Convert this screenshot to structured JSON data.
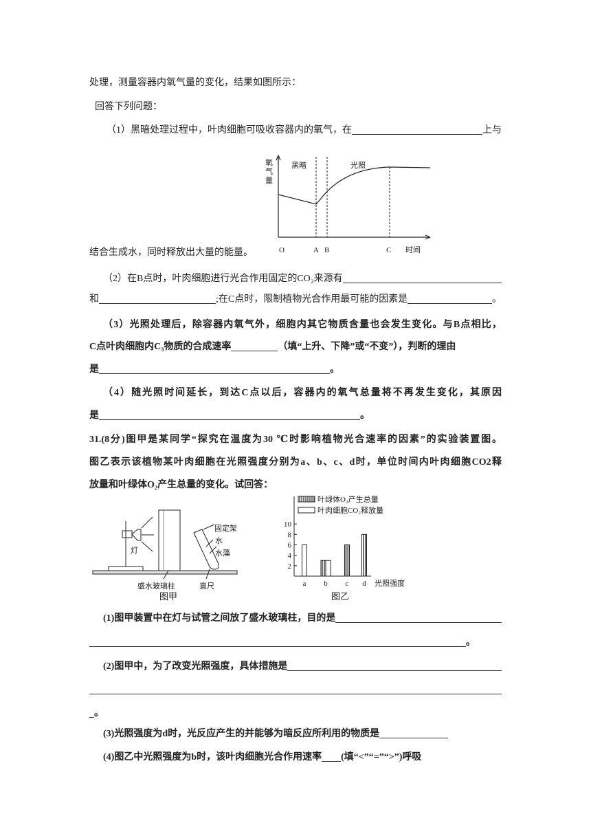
{
  "lines": {
    "l1": "处理，测量容器内氧气量的变化，结果如图所示：",
    "l2": "回答下列问题：",
    "q1a": "（1）黑暗处理过程中，叶肉细胞可吸收容器内的氧气，在",
    "q1b": "上与",
    "q1c": "结合生成水，同时释放出大量的能量。",
    "q2a": "（2）在B点时，叶肉细胞进行光合作用固定的CO₂来源有",
    "q2b": "和",
    "q2c": ";在C点时，限制植物光合作用最可能的因素是",
    "q2d": "。",
    "q3a": "（3）光照处理后，除容器内氧气外，细胞内其它物质含量也会发生变化。与B点相比，",
    "q3b": "C点叶肉细胞内C₃物质的合成速率",
    "q3c": "（填“上升、下降”或“不变”），判断的理由",
    "q3d": "是",
    "q3e": "。",
    "q4a": "（4）随光照时间延长，到达C点以后，容器内的氧气总量将不再发生变化，其原因",
    "q4b": "是",
    "q4c": "。",
    "p31a": "31.(8分)图甲是某同学“探究在温度为30 ℃时影响植物光合速率的因素”的实验装置图。",
    "p31b": "图乙表示该植物某叶肉细胞在光照强度分别为a、b、c、d时，单位时间内叶肉细胞CO2释",
    "p31c": "放量和叶绿体O₂产生总量的变化。试回答：",
    "s1a": "(1)图甲装置中在灯与试管之间放了盛水玻璃柱，目的是",
    "s1b": "。",
    "s2a": "(2)图甲中，为了改变光照强度，具体措施是",
    "s2b": "。",
    "s3a": "(3)光照强度为d时，光反应产生的并能够为暗反应所利用的物质是",
    "s4a": "(4)图乙中光照强度为b时，该叶肉细胞光合作用速率",
    "s4b": "(填“<”“=”“>”)呼吸"
  },
  "figure_oxygen": {
    "y_label": [
      "氧",
      "气",
      "量"
    ],
    "dark": "黑暗",
    "light": "光照",
    "origin": "O",
    "a": "A",
    "b": "B",
    "c": "C",
    "x_label": "时间"
  },
  "figure_a": {
    "lamp": "灯",
    "stand": "固定架",
    "water": "水",
    "algae": "水藻",
    "column": "盛水玻璃柱",
    "ruler": "直尺",
    "caption": "图甲"
  },
  "chart_data": {
    "type": "bar",
    "categories": [
      "a",
      "b",
      "c",
      "d"
    ],
    "x_label": "光照强度",
    "caption": "图乙",
    "ylim": [
      0,
      12
    ],
    "yticks": [
      2,
      4,
      6,
      8,
      10
    ],
    "series": [
      {
        "name": "叶绿体O₂产生总量",
        "color": "#999999",
        "pattern": "hatch",
        "values": [
          0,
          3,
          6,
          8
        ]
      },
      {
        "name": "叶肉细胞CO₂释放量",
        "color": "#ffffff",
        "pattern": "none",
        "values": [
          6,
          3,
          0,
          0
        ]
      }
    ]
  }
}
